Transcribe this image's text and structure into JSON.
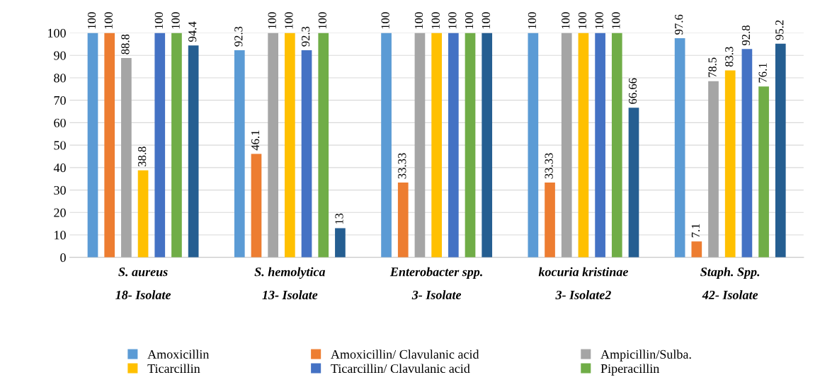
{
  "chart_data": {
    "type": "bar",
    "categories": [
      "S. aureus\n18- Isolate",
      "S. hemolytica\n13- Isolate",
      "Enterobacter spp.\n3- Isolate",
      "kocuria kristinae\n3- Isolate2",
      "Staph. Spp.\n42- Isolate"
    ],
    "series": [
      {
        "name": "Amoxicillin",
        "color": "#5b9bd5",
        "values": [
          100,
          92.3,
          100,
          100,
          97.6
        ]
      },
      {
        "name": "Amoxicillin/ Clavulanic acid",
        "color": "#ed7d31",
        "values": [
          100,
          46.1,
          33.33,
          33.33,
          7.1
        ]
      },
      {
        "name": "Ampicillin/Sulba.",
        "color": "#a5a5a5",
        "values": [
          88.8,
          100,
          100,
          100,
          78.5
        ]
      },
      {
        "name": "Ticarcillin",
        "color": "#ffc000",
        "values": [
          38.8,
          100,
          100,
          100,
          83.3
        ]
      },
      {
        "name": "Ticarcillin/ Clavulanic acid",
        "color": "#4472c4",
        "values": [
          100,
          92.3,
          100,
          100,
          92.8
        ]
      },
      {
        "name": "Piperacillin",
        "color": "#70ad47",
        "values": [
          100,
          100,
          100,
          100,
          76.1
        ]
      },
      {
        "color": "#255e91",
        "values": [
          94.4,
          13,
          100,
          66.66,
          95.2
        ]
      }
    ],
    "ylim": [
      0,
      100
    ],
    "yticks": [
      0,
      10,
      20,
      30,
      40,
      50,
      60,
      70,
      80,
      90,
      100
    ],
    "grid": "y",
    "legend": "bottom",
    "data_labels": true
  }
}
